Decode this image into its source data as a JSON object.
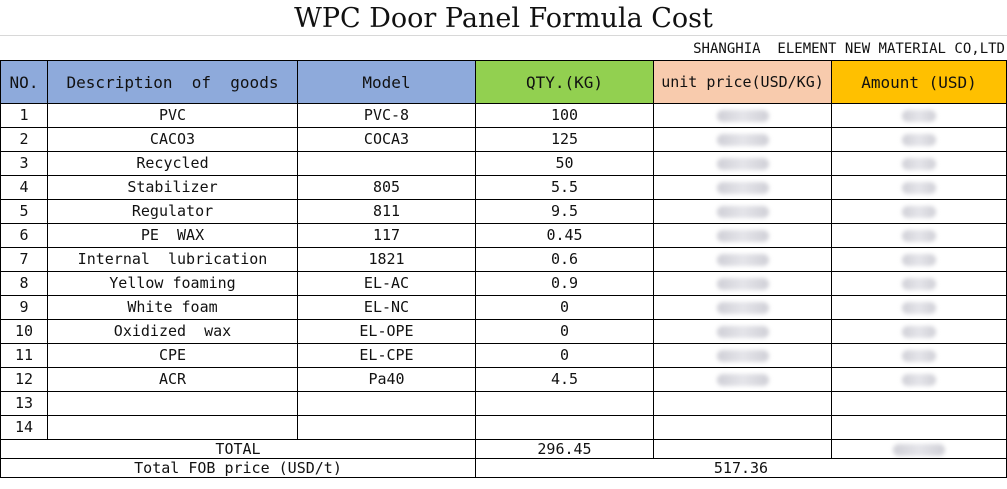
{
  "title": "WPC Door Panel Formula Cost",
  "company": "SHANGHIA  ELEMENT NEW MATERIAL CO,LTD",
  "headers": {
    "no": "NO.",
    "description": "Description  of  goods",
    "model": "Model",
    "qty": "QTY.(KG)",
    "unit_price": "unit price(USD/KG)",
    "amount": "Amount (USD)"
  },
  "rows": [
    {
      "no": "1",
      "description": "PVC",
      "model": "PVC-8",
      "qty": "100"
    },
    {
      "no": "2",
      "description": "CACO3",
      "model": "COCA3",
      "qty": "125"
    },
    {
      "no": "3",
      "description": "Recycled",
      "model": "",
      "qty": "50"
    },
    {
      "no": "4",
      "description": "Stabilizer",
      "model": "805",
      "qty": "5.5"
    },
    {
      "no": "5",
      "description": "Regulator",
      "model": "811",
      "qty": "9.5"
    },
    {
      "no": "6",
      "description": "PE  WAX",
      "model": "117",
      "qty": "0.45"
    },
    {
      "no": "7",
      "description": "Internal  lubrication",
      "model": "1821",
      "qty": "0.6"
    },
    {
      "no": "8",
      "description": "Yellow foaming",
      "model": "EL-AC",
      "qty": "0.9"
    },
    {
      "no": "9",
      "description": "White foam",
      "model": "EL-NC",
      "qty": "0"
    },
    {
      "no": "10",
      "description": "Oxidized  wax",
      "model": "EL-OPE",
      "qty": "0"
    },
    {
      "no": "11",
      "description": "CPE",
      "model": "EL-CPE",
      "qty": "0"
    },
    {
      "no": "12",
      "description": "ACR",
      "model": "Pa40",
      "qty": "4.5"
    },
    {
      "no": "13",
      "description": "",
      "model": "",
      "qty": ""
    },
    {
      "no": "14",
      "description": "",
      "model": "",
      "qty": ""
    }
  ],
  "total": {
    "label": "TOTAL",
    "qty": "296.45"
  },
  "fob": {
    "label": "Total FOB price (USD/t)",
    "value": "517.36"
  }
}
